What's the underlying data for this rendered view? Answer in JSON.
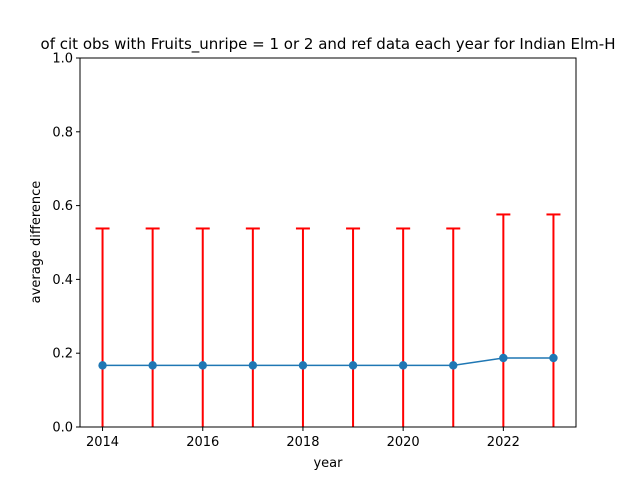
{
  "chart_data": {
    "type": "line",
    "title": "of cit obs with Fruits_unripe = 1 or 2 and ref data each year for Indian Elm-H",
    "xlabel": "year",
    "ylabel": "average difference",
    "x": [
      2014,
      2015,
      2016,
      2017,
      2018,
      2019,
      2020,
      2021,
      2022,
      2023
    ],
    "series": [
      {
        "values": [
          0.167,
          0.167,
          0.167,
          0.167,
          0.167,
          0.167,
          0.167,
          0.167,
          0.187,
          0.187
        ],
        "error_low": [
          0.167,
          0.167,
          0.167,
          0.167,
          0.167,
          0.167,
          0.167,
          0.167,
          0.187,
          0.187
        ],
        "error_high": [
          0.371,
          0.371,
          0.371,
          0.371,
          0.371,
          0.371,
          0.371,
          0.371,
          0.389,
          0.389
        ],
        "color": "#1f77b4",
        "error_color": "#ff0000"
      }
    ],
    "xlim": [
      2013.55,
      2023.45
    ],
    "ylim": [
      0,
      1
    ],
    "xticks": [
      "2014",
      "2016",
      "2018",
      "2020",
      "2022"
    ],
    "yticks": [
      "0.0",
      "0.2",
      "0.4",
      "0.6",
      "0.8",
      "1.0"
    ],
    "grid": false
  }
}
